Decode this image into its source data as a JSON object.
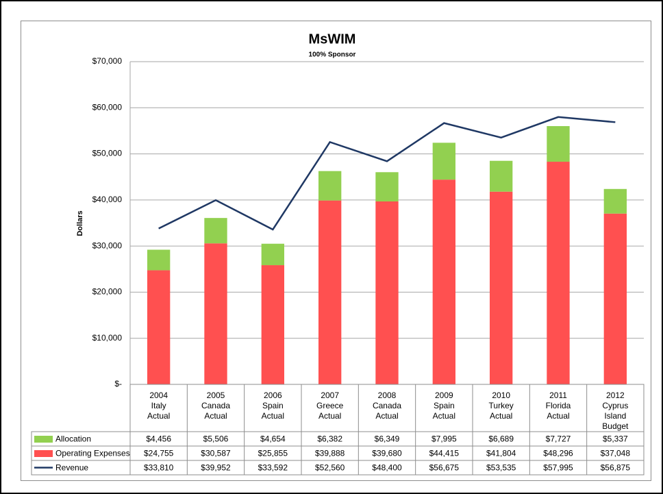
{
  "chart_data": {
    "type": "bar",
    "title": "MsWIM",
    "subtitle": "100% Sponsor",
    "y_label": "Dollars",
    "categories": [
      [
        "2004",
        "Italy",
        "Actual"
      ],
      [
        "2005",
        "Canada",
        "Actual"
      ],
      [
        "2006",
        "Spain",
        "Actual"
      ],
      [
        "2007",
        "Greece",
        "Actual"
      ],
      [
        "2008",
        "Canada",
        "Actual"
      ],
      [
        "2009",
        "Spain",
        "Actual"
      ],
      [
        "2010",
        "Turkey",
        "Actual"
      ],
      [
        "2011",
        "Florida",
        "Actual"
      ],
      [
        "2012",
        "Cyprus",
        "Island",
        "Budget"
      ]
    ],
    "series": [
      {
        "name": "Allocation",
        "type": "bar",
        "color": "#92d050",
        "values": [
          4456,
          5506,
          4654,
          6382,
          6349,
          7995,
          6689,
          7727,
          5337
        ],
        "value_labels": [
          "$4,456",
          "$5,506",
          "$4,654",
          "$6,382",
          "$6,349",
          "$7,995",
          "$6,689",
          "$7,727",
          "$5,337"
        ]
      },
      {
        "name": "Operating Expenses",
        "type": "bar",
        "color": "#ff5050",
        "values": [
          24755,
          30587,
          25855,
          39888,
          39680,
          44415,
          41804,
          48296,
          37048
        ],
        "value_labels": [
          "$24,755",
          "$30,587",
          "$25,855",
          "$39,888",
          "$39,680",
          "$44,415",
          "$41,804",
          "$48,296",
          "$37,048"
        ]
      },
      {
        "name": "Revenue",
        "type": "line",
        "color": "#1f3864",
        "values": [
          33810,
          39952,
          33592,
          52560,
          48400,
          56675,
          53535,
          57995,
          56875
        ],
        "value_labels": [
          "$33,810",
          "$39,952",
          "$33,592",
          "$52,560",
          "$48,400",
          "$56,675",
          "$53,535",
          "$57,995",
          "$56,875"
        ]
      }
    ],
    "stack_order": [
      1,
      0
    ],
    "ylim": [
      0,
      70000
    ],
    "yticks": [
      {
        "value": 0,
        "label": "$-"
      },
      {
        "value": 10000,
        "label": "$10,000"
      },
      {
        "value": 20000,
        "label": "$20,000"
      },
      {
        "value": 30000,
        "label": "$30,000"
      },
      {
        "value": 40000,
        "label": "$40,000"
      },
      {
        "value": 50000,
        "label": "$50,000"
      },
      {
        "value": 60000,
        "label": "$60,000"
      },
      {
        "value": 70000,
        "label": "$70,000"
      }
    ],
    "grid": true
  }
}
